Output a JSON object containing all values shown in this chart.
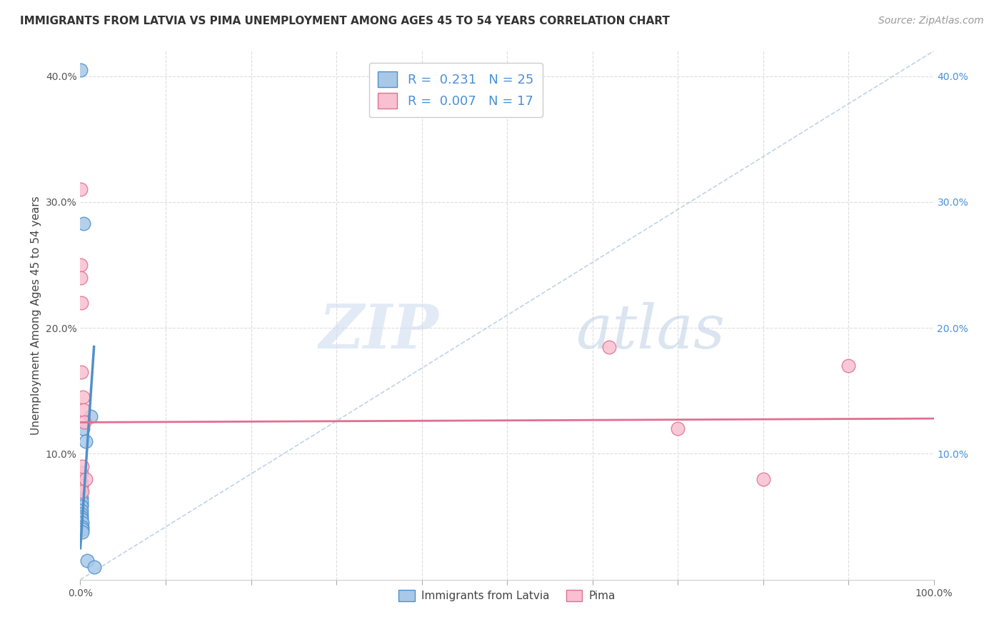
{
  "title": "IMMIGRANTS FROM LATVIA VS PIMA UNEMPLOYMENT AMONG AGES 45 TO 54 YEARS CORRELATION CHART",
  "source": "Source: ZipAtlas.com",
  "ylabel": "Unemployment Among Ages 45 to 54 years",
  "xlim": [
    0,
    1.0
  ],
  "ylim": [
    0,
    0.42
  ],
  "xticks": [
    0.0,
    0.1,
    0.2,
    0.3,
    0.4,
    0.5,
    0.6,
    0.7,
    0.8,
    0.9,
    1.0
  ],
  "xticklabels": [
    "0.0%",
    "",
    "",
    "",
    "",
    "",
    "",
    "",
    "",
    "",
    "100.0%"
  ],
  "yticks": [
    0.0,
    0.1,
    0.2,
    0.3,
    0.4
  ],
  "yticklabels_left": [
    "",
    "10.0%",
    "20.0%",
    "30.0%",
    "40.0%"
  ],
  "yticklabels_right": [
    "",
    "10.0%",
    "20.0%",
    "30.0%",
    "40.0%"
  ],
  "blue_color": "#a8c8e8",
  "blue_color_dark": "#5090c8",
  "pink_color": "#f8c0d0",
  "pink_color_dark": "#e07090",
  "blue_label": "Immigrants from Latvia",
  "pink_label": "Pima",
  "R_blue": 0.231,
  "N_blue": 25,
  "R_pink": 0.007,
  "N_pink": 17,
  "blue_scatter_x": [
    0.0002,
    0.0005,
    0.0006,
    0.0007,
    0.0008,
    0.001,
    0.001,
    0.001,
    0.0012,
    0.0012,
    0.0013,
    0.0014,
    0.0015,
    0.0015,
    0.0016,
    0.0017,
    0.0018,
    0.002,
    0.002,
    0.003,
    0.004,
    0.006,
    0.008,
    0.012,
    0.016
  ],
  "blue_scatter_y": [
    0.405,
    0.078,
    0.075,
    0.07,
    0.065,
    0.065,
    0.07,
    0.075,
    0.06,
    0.062,
    0.058,
    0.055,
    0.052,
    0.05,
    0.048,
    0.045,
    0.042,
    0.04,
    0.038,
    0.12,
    0.283,
    0.11,
    0.015,
    0.13,
    0.01
  ],
  "pink_scatter_x": [
    0.0003,
    0.0005,
    0.0007,
    0.0009,
    0.001,
    0.0012,
    0.0015,
    0.0017,
    0.002,
    0.003,
    0.004,
    0.005,
    0.006,
    0.62,
    0.7,
    0.8,
    0.9
  ],
  "pink_scatter_y": [
    0.31,
    0.25,
    0.24,
    0.22,
    0.085,
    0.075,
    0.165,
    0.07,
    0.09,
    0.145,
    0.135,
    0.125,
    0.08,
    0.185,
    0.12,
    0.08,
    0.17
  ],
  "blue_trend_x": [
    0.0,
    0.016
  ],
  "blue_trend_y": [
    0.025,
    0.185
  ],
  "pink_trend_x": [
    0.0,
    1.0
  ],
  "pink_trend_y": [
    0.125,
    0.128
  ],
  "diag_trend_x": [
    0.0,
    1.0
  ],
  "diag_trend_y": [
    0.0,
    0.42
  ],
  "watermark_zip": "ZIP",
  "watermark_atlas": "atlas",
  "grid_color": "#dddddd",
  "marker_size": 180
}
